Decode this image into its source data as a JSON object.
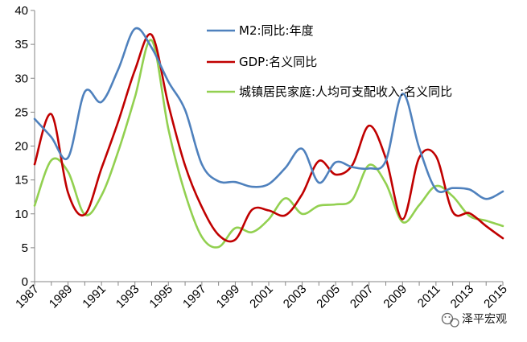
{
  "chart_data": {
    "type": "line",
    "title": "",
    "xlabel": "",
    "ylabel": "",
    "x": [
      1987,
      1988,
      1989,
      1990,
      1991,
      1992,
      1993,
      1994,
      1995,
      1996,
      1997,
      1998,
      1999,
      2000,
      2001,
      2002,
      2003,
      2004,
      2005,
      2006,
      2007,
      2008,
      2009,
      2010,
      2011,
      2012,
      2013,
      2014,
      2015
    ],
    "x_ticks": [
      "1987",
      "1989",
      "1991",
      "1993",
      "1995",
      "1997",
      "1999",
      "2001",
      "2003",
      "2005",
      "2007",
      "2009",
      "2011",
      "2013",
      "2015"
    ],
    "ylim": [
      0,
      40
    ],
    "y_ticks": [
      "0",
      "5",
      "10",
      "15",
      "20",
      "25",
      "30",
      "35",
      "40"
    ],
    "grid": false,
    "legend_position": "top-right",
    "series": [
      {
        "name": "M2:同比:年度",
        "color": "#4f81bd",
        "values": [
          24,
          21.3,
          18.3,
          28,
          26.5,
          31.3,
          37.3,
          34.5,
          29.5,
          25.3,
          17.3,
          14.8,
          14.7,
          14,
          14.4,
          16.8,
          19.6,
          14.6,
          17.6,
          16.9,
          16.7,
          17.8,
          27.7,
          19.7,
          13.6,
          13.8,
          13.6,
          12.2,
          13.3
        ]
      },
      {
        "name": "GDP:名义同比",
        "color": "#c00000",
        "values": [
          17.3,
          24.7,
          13.1,
          9.9,
          16.7,
          23.6,
          31.2,
          36.4,
          26.1,
          17.1,
          11,
          6.9,
          6.2,
          10.6,
          10.5,
          9.8,
          12.9,
          17.8,
          15.8,
          17.2,
          23,
          18.2,
          9.2,
          18.3,
          18.5,
          10.3,
          10.1,
          8.2,
          6.4
        ]
      },
      {
        "name": "城镇居民家庭:人均可支配收入:名义同比",
        "color": "#92d050",
        "values": [
          11.2,
          17.9,
          16.2,
          9.9,
          12.7,
          19.2,
          27.2,
          35.6,
          22.5,
          13,
          6.6,
          5.1,
          7.9,
          7.3,
          9.2,
          12.3,
          10,
          11.2,
          11.4,
          12.1,
          17.2,
          14.5,
          8.8,
          11.3,
          14.1,
          12.6,
          9.7,
          9,
          8.2
        ]
      }
    ]
  },
  "watermark": {
    "text": "泽平宏观",
    "icon": "wechat-icon"
  }
}
